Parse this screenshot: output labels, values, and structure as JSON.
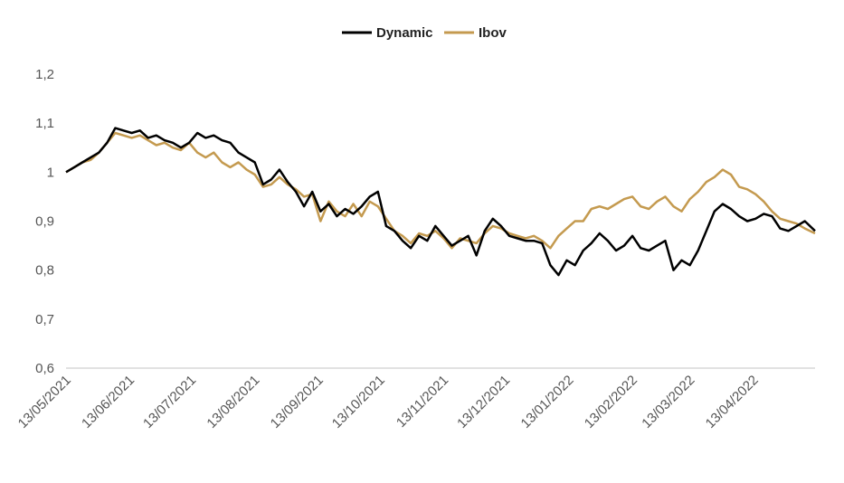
{
  "chart_data": {
    "type": "line",
    "title": "",
    "xlabel": "",
    "ylabel": "",
    "ylim": [
      0.6,
      1.2
    ],
    "xlim": [
      "2021-05-13",
      "2022-05-13"
    ],
    "y_ticks": [
      "0,6",
      "0,7",
      "0,8",
      "0,9",
      "1",
      "1,1",
      "1,2"
    ],
    "x_ticks": [
      "13/05/2021",
      "13/06/2021",
      "13/07/2021",
      "13/08/2021",
      "13/09/2021",
      "13/10/2021",
      "13/11/2021",
      "13/12/2021",
      "13/01/2022",
      "13/02/2022",
      "13/03/2022",
      "13/04/2022"
    ],
    "grid": false,
    "legend_position": "top-center",
    "series": [
      {
        "name": "Dynamic",
        "color": "#000000",
        "points": [
          [
            "2021-05-13",
            1.0
          ],
          [
            "2021-05-17",
            1.01
          ],
          [
            "2021-05-21",
            1.02
          ],
          [
            "2021-05-25",
            1.03
          ],
          [
            "2021-05-29",
            1.04
          ],
          [
            "2021-06-02",
            1.06
          ],
          [
            "2021-06-06",
            1.09
          ],
          [
            "2021-06-10",
            1.085
          ],
          [
            "2021-06-14",
            1.08
          ],
          [
            "2021-06-18",
            1.085
          ],
          [
            "2021-06-22",
            1.07
          ],
          [
            "2021-06-26",
            1.075
          ],
          [
            "2021-06-30",
            1.065
          ],
          [
            "2021-07-04",
            1.06
          ],
          [
            "2021-07-08",
            1.05
          ],
          [
            "2021-07-12",
            1.06
          ],
          [
            "2021-07-16",
            1.08
          ],
          [
            "2021-07-20",
            1.07
          ],
          [
            "2021-07-24",
            1.075
          ],
          [
            "2021-07-28",
            1.065
          ],
          [
            "2021-08-01",
            1.06
          ],
          [
            "2021-08-05",
            1.04
          ],
          [
            "2021-08-09",
            1.03
          ],
          [
            "2021-08-13",
            1.02
          ],
          [
            "2021-08-17",
            0.975
          ],
          [
            "2021-08-21",
            0.985
          ],
          [
            "2021-08-25",
            1.005
          ],
          [
            "2021-08-29",
            0.98
          ],
          [
            "2021-09-02",
            0.96
          ],
          [
            "2021-09-06",
            0.93
          ],
          [
            "2021-09-10",
            0.96
          ],
          [
            "2021-09-14",
            0.92
          ],
          [
            "2021-09-18",
            0.935
          ],
          [
            "2021-09-22",
            0.91
          ],
          [
            "2021-09-26",
            0.925
          ],
          [
            "2021-09-30",
            0.915
          ],
          [
            "2021-10-04",
            0.93
          ],
          [
            "2021-10-08",
            0.95
          ],
          [
            "2021-10-12",
            0.96
          ],
          [
            "2021-10-16",
            0.89
          ],
          [
            "2021-10-20",
            0.88
          ],
          [
            "2021-10-24",
            0.86
          ],
          [
            "2021-10-28",
            0.845
          ],
          [
            "2021-11-01",
            0.87
          ],
          [
            "2021-11-05",
            0.86
          ],
          [
            "2021-11-09",
            0.89
          ],
          [
            "2021-11-13",
            0.87
          ],
          [
            "2021-11-17",
            0.85
          ],
          [
            "2021-11-21",
            0.86
          ],
          [
            "2021-11-25",
            0.87
          ],
          [
            "2021-11-29",
            0.83
          ],
          [
            "2021-12-03",
            0.88
          ],
          [
            "2021-12-07",
            0.905
          ],
          [
            "2021-12-11",
            0.89
          ],
          [
            "2021-12-15",
            0.87
          ],
          [
            "2021-12-19",
            0.865
          ],
          [
            "2021-12-23",
            0.86
          ],
          [
            "2021-12-27",
            0.86
          ],
          [
            "2021-12-31",
            0.855
          ],
          [
            "2022-01-04",
            0.81
          ],
          [
            "2022-01-08",
            0.79
          ],
          [
            "2022-01-12",
            0.82
          ],
          [
            "2022-01-16",
            0.81
          ],
          [
            "2022-01-20",
            0.84
          ],
          [
            "2022-01-24",
            0.855
          ],
          [
            "2022-01-28",
            0.875
          ],
          [
            "2022-02-01",
            0.86
          ],
          [
            "2022-02-05",
            0.84
          ],
          [
            "2022-02-09",
            0.85
          ],
          [
            "2022-02-13",
            0.87
          ],
          [
            "2022-02-17",
            0.845
          ],
          [
            "2022-02-21",
            0.84
          ],
          [
            "2022-02-25",
            0.85
          ],
          [
            "2022-03-01",
            0.86
          ],
          [
            "2022-03-05",
            0.8
          ],
          [
            "2022-03-09",
            0.82
          ],
          [
            "2022-03-13",
            0.81
          ],
          [
            "2022-03-17",
            0.84
          ],
          [
            "2022-03-21",
            0.88
          ],
          [
            "2022-03-25",
            0.92
          ],
          [
            "2022-03-29",
            0.935
          ],
          [
            "2022-04-02",
            0.925
          ],
          [
            "2022-04-06",
            0.91
          ],
          [
            "2022-04-10",
            0.9
          ],
          [
            "2022-04-14",
            0.905
          ],
          [
            "2022-04-18",
            0.915
          ],
          [
            "2022-04-22",
            0.91
          ],
          [
            "2022-04-26",
            0.885
          ],
          [
            "2022-04-30",
            0.88
          ],
          [
            "2022-05-04",
            0.89
          ],
          [
            "2022-05-08",
            0.9
          ],
          [
            "2022-05-13",
            0.88
          ]
        ]
      },
      {
        "name": "Ibov",
        "color": "#C49A4F",
        "points": [
          [
            "2021-05-13",
            1.0
          ],
          [
            "2021-05-17",
            1.01
          ],
          [
            "2021-05-21",
            1.02
          ],
          [
            "2021-05-25",
            1.025
          ],
          [
            "2021-05-29",
            1.04
          ],
          [
            "2021-06-02",
            1.06
          ],
          [
            "2021-06-06",
            1.08
          ],
          [
            "2021-06-10",
            1.075
          ],
          [
            "2021-06-14",
            1.07
          ],
          [
            "2021-06-18",
            1.075
          ],
          [
            "2021-06-22",
            1.065
          ],
          [
            "2021-06-26",
            1.055
          ],
          [
            "2021-06-30",
            1.06
          ],
          [
            "2021-07-04",
            1.05
          ],
          [
            "2021-07-08",
            1.045
          ],
          [
            "2021-07-12",
            1.06
          ],
          [
            "2021-07-16",
            1.04
          ],
          [
            "2021-07-20",
            1.03
          ],
          [
            "2021-07-24",
            1.04
          ],
          [
            "2021-07-28",
            1.02
          ],
          [
            "2021-08-01",
            1.01
          ],
          [
            "2021-08-05",
            1.02
          ],
          [
            "2021-08-09",
            1.005
          ],
          [
            "2021-08-13",
            0.995
          ],
          [
            "2021-08-17",
            0.97
          ],
          [
            "2021-08-21",
            0.975
          ],
          [
            "2021-08-25",
            0.99
          ],
          [
            "2021-08-29",
            0.975
          ],
          [
            "2021-09-02",
            0.965
          ],
          [
            "2021-09-06",
            0.95
          ],
          [
            "2021-09-10",
            0.955
          ],
          [
            "2021-09-14",
            0.9
          ],
          [
            "2021-09-18",
            0.94
          ],
          [
            "2021-09-22",
            0.92
          ],
          [
            "2021-09-26",
            0.91
          ],
          [
            "2021-09-30",
            0.935
          ],
          [
            "2021-10-04",
            0.91
          ],
          [
            "2021-10-08",
            0.94
          ],
          [
            "2021-10-12",
            0.93
          ],
          [
            "2021-10-16",
            0.905
          ],
          [
            "2021-10-20",
            0.88
          ],
          [
            "2021-10-24",
            0.87
          ],
          [
            "2021-10-28",
            0.855
          ],
          [
            "2021-11-01",
            0.875
          ],
          [
            "2021-11-05",
            0.87
          ],
          [
            "2021-11-09",
            0.88
          ],
          [
            "2021-11-13",
            0.865
          ],
          [
            "2021-11-17",
            0.845
          ],
          [
            "2021-11-21",
            0.865
          ],
          [
            "2021-11-25",
            0.86
          ],
          [
            "2021-11-29",
            0.855
          ],
          [
            "2021-12-03",
            0.875
          ],
          [
            "2021-12-07",
            0.89
          ],
          [
            "2021-12-11",
            0.885
          ],
          [
            "2021-12-15",
            0.875
          ],
          [
            "2021-12-19",
            0.87
          ],
          [
            "2021-12-23",
            0.865
          ],
          [
            "2021-12-27",
            0.87
          ],
          [
            "2021-12-31",
            0.86
          ],
          [
            "2022-01-04",
            0.845
          ],
          [
            "2022-01-08",
            0.87
          ],
          [
            "2022-01-12",
            0.885
          ],
          [
            "2022-01-16",
            0.9
          ],
          [
            "2022-01-20",
            0.9
          ],
          [
            "2022-01-24",
            0.925
          ],
          [
            "2022-01-28",
            0.93
          ],
          [
            "2022-02-01",
            0.925
          ],
          [
            "2022-02-05",
            0.935
          ],
          [
            "2022-02-09",
            0.945
          ],
          [
            "2022-02-13",
            0.95
          ],
          [
            "2022-02-17",
            0.93
          ],
          [
            "2022-02-21",
            0.925
          ],
          [
            "2022-02-25",
            0.94
          ],
          [
            "2022-03-01",
            0.95
          ],
          [
            "2022-03-05",
            0.93
          ],
          [
            "2022-03-09",
            0.92
          ],
          [
            "2022-03-13",
            0.945
          ],
          [
            "2022-03-17",
            0.96
          ],
          [
            "2022-03-21",
            0.98
          ],
          [
            "2022-03-25",
            0.99
          ],
          [
            "2022-03-29",
            1.005
          ],
          [
            "2022-04-02",
            0.995
          ],
          [
            "2022-04-06",
            0.97
          ],
          [
            "2022-04-10",
            0.965
          ],
          [
            "2022-04-14",
            0.955
          ],
          [
            "2022-04-18",
            0.94
          ],
          [
            "2022-04-22",
            0.92
          ],
          [
            "2022-04-26",
            0.905
          ],
          [
            "2022-04-30",
            0.9
          ],
          [
            "2022-05-04",
            0.895
          ],
          [
            "2022-05-08",
            0.885
          ],
          [
            "2022-05-13",
            0.875
          ]
        ]
      }
    ]
  }
}
